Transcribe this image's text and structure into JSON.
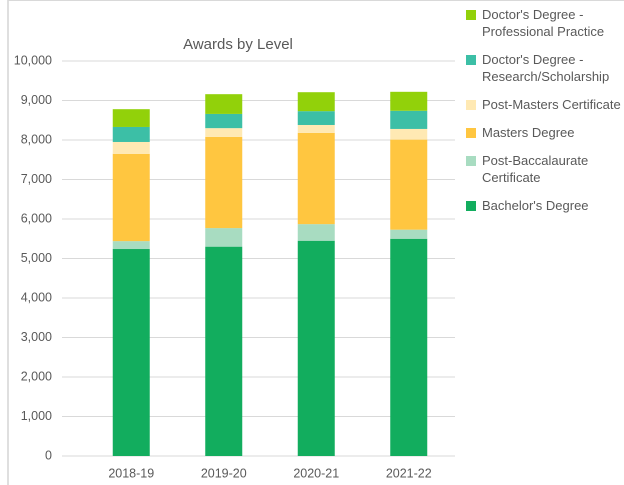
{
  "chart_data": {
    "type": "stacked_bar",
    "title": "Awards by Level",
    "categories": [
      "2018-19",
      "2019-20",
      "2020-21",
      "2021-22"
    ],
    "series": [
      {
        "name": "Bachelor's Degree",
        "color": "#12ad5e",
        "values": [
          5240,
          5300,
          5450,
          5500
        ]
      },
      {
        "name": "Post-Baccalaurate Certificate",
        "color": "#a8dcc1",
        "values": [
          200,
          470,
          420,
          230
        ]
      },
      {
        "name": "Masters Degree",
        "color": "#ffc640",
        "values": [
          2210,
          2310,
          2310,
          2280
        ]
      },
      {
        "name": "Post-Masters Certificate",
        "color": "#ffe9b3",
        "values": [
          300,
          220,
          200,
          270
        ]
      },
      {
        "name": "Doctor's Degree - Research/Scholarship",
        "color": "#3cbfa6",
        "values": [
          380,
          360,
          350,
          460
        ]
      },
      {
        "name": "Doctor's Degree - Professional Practice",
        "color": "#92d10a",
        "values": [
          450,
          500,
          480,
          480
        ]
      }
    ],
    "ylim": [
      0,
      10000
    ],
    "yticks": [
      0,
      {
        "value": 1000,
        "label": "1,000"
      },
      {
        "value": 2000,
        "label": "2,000"
      },
      {
        "value": 3000,
        "label": "3,000"
      },
      {
        "value": 4000,
        "label": "4,000"
      },
      {
        "value": 5000,
        "label": "5,000"
      },
      {
        "value": 6000,
        "label": "6,000"
      },
      {
        "value": 7000,
        "label": "7,000"
      },
      {
        "value": 8000,
        "label": "8,000"
      },
      {
        "value": 9000,
        "label": "9,000"
      },
      {
        "value": 10000,
        "label": "10,000"
      }
    ],
    "grid": true,
    "legend": "right"
  }
}
